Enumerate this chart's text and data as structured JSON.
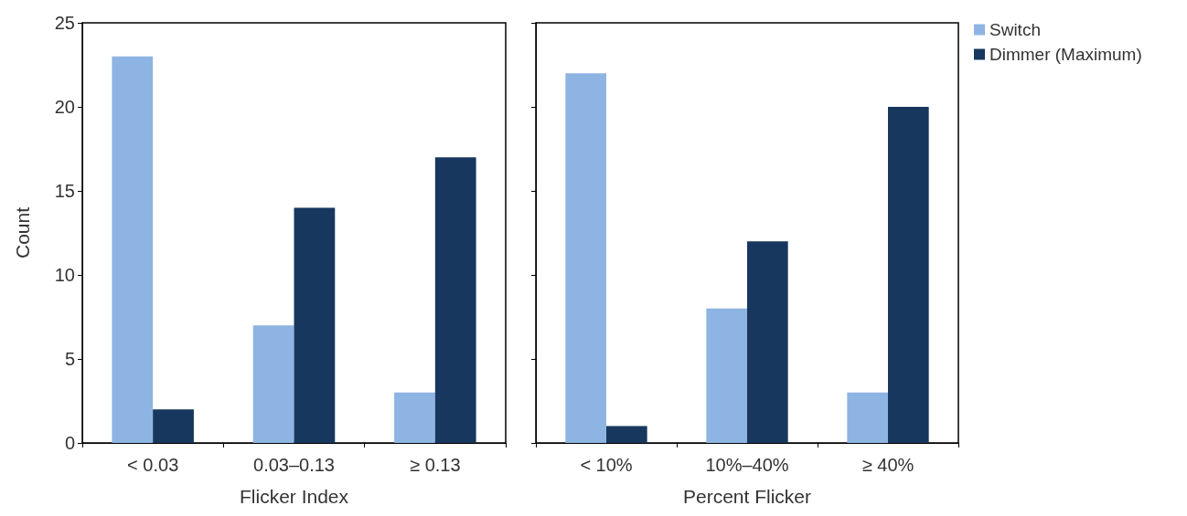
{
  "chart_data": [
    {
      "type": "bar",
      "xlabel": "Flicker Index",
      "ylabel": "Count",
      "categories": [
        "< 0.03",
        "0.03–0.13",
        "≥ 0.13"
      ],
      "series": [
        {
          "color": "#8eb4e3",
          "values": [
            23,
            7,
            3
          ]
        },
        {
          "color": "#17375e",
          "values": [
            2,
            14,
            17
          ]
        }
      ],
      "ylim": [
        0,
        25
      ],
      "yticks": [
        0,
        5,
        10,
        15,
        20,
        25
      ],
      "grid": false,
      "legend": false
    },
    {
      "type": "bar",
      "xlabel": "Percent Flicker",
      "categories": [
        "< 10%",
        "10%–40%",
        "≥ 40%"
      ],
      "series": [
        {
          "name": "Switch",
          "color": "#8eb4e3",
          "values": [
            22,
            8,
            3
          ]
        },
        {
          "name": "Dimmer (Maximum)",
          "color": "#17375e",
          "values": [
            1,
            12,
            20
          ]
        }
      ],
      "ylim": [
        0,
        25
      ],
      "yticks": [
        0,
        5,
        10,
        15,
        20,
        25
      ],
      "grid": false,
      "legend": "top right",
      "tick_labels": "x"
    }
  ]
}
